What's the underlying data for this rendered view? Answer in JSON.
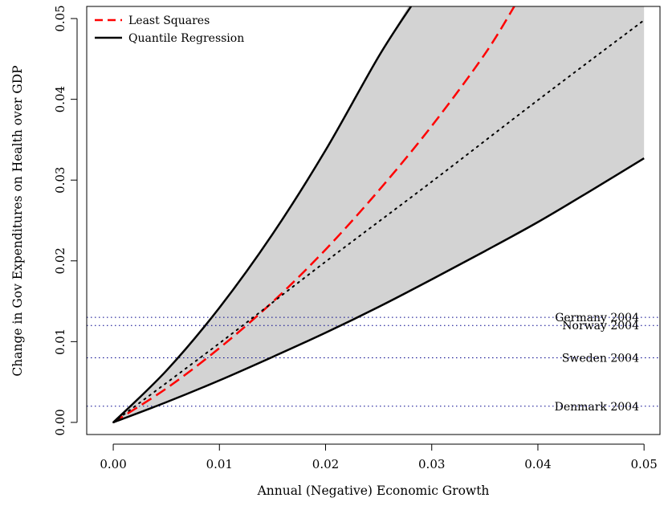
{
  "chart_data": {
    "type": "line",
    "title": "",
    "xlabel": "Annual (Negative) Economic Growth",
    "ylabel": "Change in Gov Expenditures on Health over GDP",
    "xlim": [
      -0.0025,
      0.0515
    ],
    "ylim": [
      -0.0015,
      0.0515
    ],
    "x_ticks": [
      0.0,
      0.01,
      0.02,
      0.03,
      0.04,
      0.05
    ],
    "x_tick_labels": [
      "0.00",
      "0.01",
      "0.02",
      "0.03",
      "0.04",
      "0.05"
    ],
    "y_ticks": [
      0.0,
      0.01,
      0.02,
      0.03,
      0.04,
      0.05
    ],
    "y_tick_labels": [
      "0.00",
      "0.01",
      "0.02",
      "0.03",
      "0.04",
      "0.05"
    ],
    "grid": false,
    "legend": {
      "position": "top-left",
      "entries": [
        {
          "label": "Least Squares",
          "color": "#ff0000",
          "style": "dashed"
        },
        {
          "label": "Quantile Regression",
          "color": "#000000",
          "style": "solid"
        }
      ]
    },
    "band": {
      "color": "#d3d3d3",
      "x": [
        0,
        0.005,
        0.01,
        0.015,
        0.02,
        0.025,
        0.028,
        0.03,
        0.035,
        0.04,
        0.045,
        0.05
      ],
      "upper": [
        0,
        0.0064,
        0.0142,
        0.0233,
        0.0337,
        0.0453,
        0.052,
        0.052,
        0.052,
        0.052,
        0.052,
        0.052
      ],
      "lower": [
        0,
        0.0025,
        0.0052,
        0.0081,
        0.0111,
        0.0143,
        0.0163,
        0.0177,
        0.0212,
        0.0248,
        0.0287,
        0.0327
      ]
    },
    "series": [
      {
        "name": "Least Squares",
        "color": "#ff0000",
        "style": "dashed",
        "x": [
          0,
          0.005,
          0.01,
          0.015,
          0.02,
          0.025,
          0.03,
          0.035,
          0.038
        ],
        "y": [
          0,
          0.0042,
          0.0092,
          0.0149,
          0.0214,
          0.0287,
          0.0367,
          0.0456,
          0.052
        ]
      },
      {
        "name": "",
        "color": "#000000",
        "style": "dotted",
        "x": [
          0,
          0.01,
          0.02,
          0.03,
          0.04,
          0.05
        ],
        "y": [
          0,
          0.0098,
          0.0199,
          0.0298,
          0.0399,
          0.0498
        ]
      },
      {
        "name": "Quantile Regression",
        "color": "#000000",
        "style": "solid",
        "x": [
          0,
          0.005,
          0.01,
          0.015,
          0.02,
          0.025,
          0.0283
        ],
        "y": [
          0,
          0.0064,
          0.0142,
          0.0233,
          0.0337,
          0.0453,
          0.052
        ]
      },
      {
        "name": "Quantile Regression",
        "color": "#000000",
        "style": "solid",
        "x": [
          0,
          0.005,
          0.01,
          0.015,
          0.02,
          0.025,
          0.03,
          0.035,
          0.04,
          0.045,
          0.05
        ],
        "y": [
          0,
          0.0025,
          0.0052,
          0.0081,
          0.0111,
          0.0143,
          0.0177,
          0.0212,
          0.0248,
          0.0287,
          0.0327
        ]
      }
    ],
    "reference_lines": [
      {
        "label": "Germany 2004",
        "y": 0.013,
        "color": "#00008b"
      },
      {
        "label": "Norway 2004",
        "y": 0.012,
        "color": "#00008b"
      },
      {
        "label": "Sweden 2004",
        "y": 0.008,
        "color": "#00008b"
      },
      {
        "label": "Denmark 2004",
        "y": 0.002,
        "color": "#00008b"
      }
    ]
  }
}
